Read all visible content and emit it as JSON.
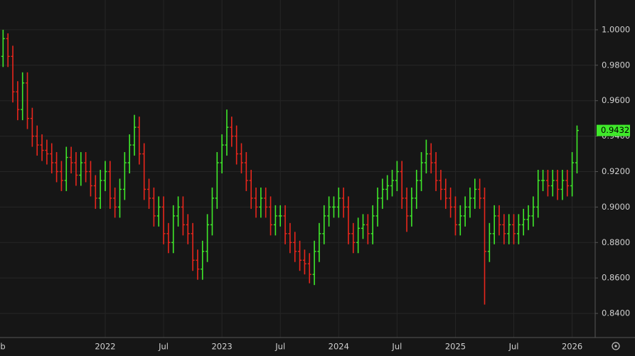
{
  "chart_data": {
    "type": "ohlc",
    "categories": [
      "Feb",
      null,
      null,
      null,
      null,
      null,
      null,
      null,
      null,
      null,
      null,
      null,
      null,
      null,
      null,
      null,
      null,
      null,
      null,
      null,
      null,
      null,
      "2022",
      null,
      null,
      null,
      null,
      null,
      null,
      null,
      null,
      null,
      null,
      null,
      "Jul",
      null,
      null,
      null,
      null,
      null,
      null,
      null,
      null,
      null,
      null,
      null,
      "2023",
      null,
      null,
      null,
      null,
      null,
      null,
      null,
      null,
      null,
      null,
      null,
      "Jul",
      null,
      null,
      null,
      null,
      null,
      null,
      null,
      null,
      null,
      null,
      null,
      "2024",
      null,
      null,
      null,
      null,
      null,
      null,
      null,
      null,
      null,
      null,
      null,
      "Jul",
      null,
      null,
      null,
      null,
      null,
      null,
      null,
      null,
      null,
      null,
      null,
      "2025",
      null,
      null,
      null,
      null,
      null,
      null,
      null,
      null,
      null,
      null,
      null,
      "Jul",
      null,
      null,
      null,
      null,
      null,
      null,
      null,
      null,
      null,
      null,
      null,
      "2026",
      null
    ],
    "open": [
      0.98,
      0.985,
      0.995,
      0.985,
      0.965,
      0.955,
      0.97,
      0.95,
      0.94,
      0.935,
      0.932,
      0.93,
      0.925,
      0.92,
      0.915,
      0.928,
      0.925,
      0.918,
      0.925,
      0.92,
      0.912,
      0.905,
      0.915,
      0.92,
      0.905,
      0.9,
      0.91,
      0.925,
      0.935,
      0.945,
      0.93,
      0.91,
      0.905,
      0.895,
      0.9,
      0.885,
      0.88,
      0.895,
      0.9,
      0.89,
      0.885,
      0.87,
      0.865,
      0.875,
      0.89,
      0.905,
      0.925,
      0.935,
      0.945,
      0.94,
      0.93,
      0.925,
      0.915,
      0.905,
      0.9,
      0.905,
      0.9,
      0.89,
      0.895,
      0.895,
      0.885,
      0.88,
      0.875,
      0.87,
      0.868,
      0.862,
      0.875,
      0.885,
      0.895,
      0.9,
      0.9,
      0.905,
      0.9,
      0.885,
      0.88,
      0.888,
      0.89,
      0.885,
      0.895,
      0.905,
      0.91,
      0.912,
      0.915,
      0.92,
      0.905,
      0.895,
      0.905,
      0.915,
      0.925,
      0.93,
      0.925,
      0.915,
      0.91,
      0.905,
      0.9,
      0.89,
      0.895,
      0.9,
      0.905,
      0.91,
      0.905,
      0.875,
      0.885,
      0.895,
      0.89,
      0.885,
      0.89,
      0.885,
      0.89,
      0.893,
      0.895,
      0.9,
      0.915,
      0.915,
      0.912,
      0.915,
      0.91,
      0.915,
      0.912,
      0.925
    ],
    "high": [
      0.991,
      1.0,
      0.998,
      0.991,
      0.971,
      0.976,
      0.976,
      0.956,
      0.946,
      0.941,
      0.938,
      0.936,
      0.931,
      0.926,
      0.934,
      0.934,
      0.931,
      0.931,
      0.931,
      0.926,
      0.918,
      0.921,
      0.926,
      0.926,
      0.911,
      0.916,
      0.931,
      0.941,
      0.952,
      0.951,
      0.936,
      0.916,
      0.911,
      0.906,
      0.906,
      0.891,
      0.901,
      0.906,
      0.906,
      0.896,
      0.891,
      0.876,
      0.881,
      0.896,
      0.911,
      0.931,
      0.941,
      0.955,
      0.951,
      0.946,
      0.936,
      0.931,
      0.921,
      0.911,
      0.911,
      0.911,
      0.906,
      0.901,
      0.901,
      0.901,
      0.891,
      0.886,
      0.881,
      0.876,
      0.874,
      0.881,
      0.891,
      0.901,
      0.906,
      0.906,
      0.911,
      0.911,
      0.906,
      0.891,
      0.894,
      0.896,
      0.896,
      0.901,
      0.911,
      0.916,
      0.918,
      0.921,
      0.926,
      0.926,
      0.911,
      0.911,
      0.921,
      0.931,
      0.938,
      0.936,
      0.931,
      0.921,
      0.916,
      0.911,
      0.906,
      0.901,
      0.906,
      0.911,
      0.916,
      0.916,
      0.911,
      0.891,
      0.901,
      0.901,
      0.896,
      0.896,
      0.896,
      0.896,
      0.899,
      0.901,
      0.906,
      0.921,
      0.921,
      0.921,
      0.921,
      0.921,
      0.921,
      0.921,
      0.931,
      0.946
    ],
    "low": [
      0.974,
      0.979,
      0.979,
      0.959,
      0.949,
      0.949,
      0.944,
      0.934,
      0.929,
      0.926,
      0.924,
      0.919,
      0.914,
      0.909,
      0.909,
      0.919,
      0.912,
      0.912,
      0.914,
      0.906,
      0.899,
      0.899,
      0.909,
      0.899,
      0.894,
      0.894,
      0.904,
      0.919,
      0.929,
      0.924,
      0.904,
      0.899,
      0.889,
      0.889,
      0.879,
      0.874,
      0.874,
      0.889,
      0.884,
      0.879,
      0.864,
      0.859,
      0.859,
      0.869,
      0.884,
      0.899,
      0.919,
      0.929,
      0.934,
      0.924,
      0.919,
      0.909,
      0.899,
      0.894,
      0.894,
      0.894,
      0.884,
      0.884,
      0.889,
      0.879,
      0.874,
      0.869,
      0.864,
      0.862,
      0.857,
      0.856,
      0.869,
      0.879,
      0.889,
      0.894,
      0.894,
      0.894,
      0.879,
      0.874,
      0.874,
      0.882,
      0.879,
      0.879,
      0.889,
      0.899,
      0.904,
      0.906,
      0.909,
      0.899,
      0.886,
      0.889,
      0.899,
      0.909,
      0.919,
      0.919,
      0.909,
      0.904,
      0.899,
      0.894,
      0.884,
      0.884,
      0.889,
      0.894,
      0.899,
      0.899,
      0.845,
      0.869,
      0.879,
      0.884,
      0.879,
      0.879,
      0.879,
      0.879,
      0.884,
      0.887,
      0.889,
      0.894,
      0.909,
      0.906,
      0.906,
      0.904,
      0.904,
      0.906,
      0.906,
      0.919
    ],
    "close": [
      0.985,
      0.995,
      0.985,
      0.965,
      0.955,
      0.97,
      0.95,
      0.94,
      0.935,
      0.932,
      0.93,
      0.925,
      0.92,
      0.915,
      0.928,
      0.925,
      0.918,
      0.925,
      0.92,
      0.912,
      0.905,
      0.915,
      0.92,
      0.905,
      0.9,
      0.91,
      0.925,
      0.935,
      0.945,
      0.93,
      0.91,
      0.905,
      0.895,
      0.9,
      0.885,
      0.88,
      0.895,
      0.9,
      0.89,
      0.885,
      0.87,
      0.865,
      0.875,
      0.89,
      0.905,
      0.925,
      0.935,
      0.945,
      0.94,
      0.93,
      0.925,
      0.915,
      0.905,
      0.9,
      0.905,
      0.9,
      0.89,
      0.895,
      0.895,
      0.885,
      0.88,
      0.875,
      0.87,
      0.868,
      0.862,
      0.875,
      0.885,
      0.895,
      0.9,
      0.9,
      0.905,
      0.9,
      0.885,
      0.88,
      0.888,
      0.89,
      0.885,
      0.895,
      0.905,
      0.91,
      0.912,
      0.915,
      0.92,
      0.905,
      0.895,
      0.905,
      0.915,
      0.925,
      0.93,
      0.925,
      0.915,
      0.91,
      0.905,
      0.9,
      0.89,
      0.895,
      0.9,
      0.905,
      0.91,
      0.905,
      0.875,
      0.885,
      0.895,
      0.89,
      0.885,
      0.89,
      0.885,
      0.89,
      0.893,
      0.895,
      0.9,
      0.915,
      0.915,
      0.912,
      0.915,
      0.91,
      0.915,
      0.912,
      0.925,
      0.9432
    ],
    "last_label": "0.9432",
    "up_color": "#3fe82a",
    "down_color": "#e8261c",
    "ylim": [
      0.8264,
      1.0168
    ],
    "yticks": [
      {
        "value": 0.84,
        "label": "0.8400"
      },
      {
        "value": 0.86,
        "label": "0.8600"
      },
      {
        "value": 0.88,
        "label": "0.8800"
      },
      {
        "value": 0.9,
        "label": "0.9000"
      },
      {
        "value": 0.92,
        "label": "0.9200"
      },
      {
        "value": 0.94,
        "label": "0.9400"
      },
      {
        "value": 0.96,
        "label": "0.9600"
      },
      {
        "value": 0.98,
        "label": "0.9800"
      },
      {
        "value": 1.0,
        "label": "1.0000"
      }
    ],
    "grid": true
  }
}
